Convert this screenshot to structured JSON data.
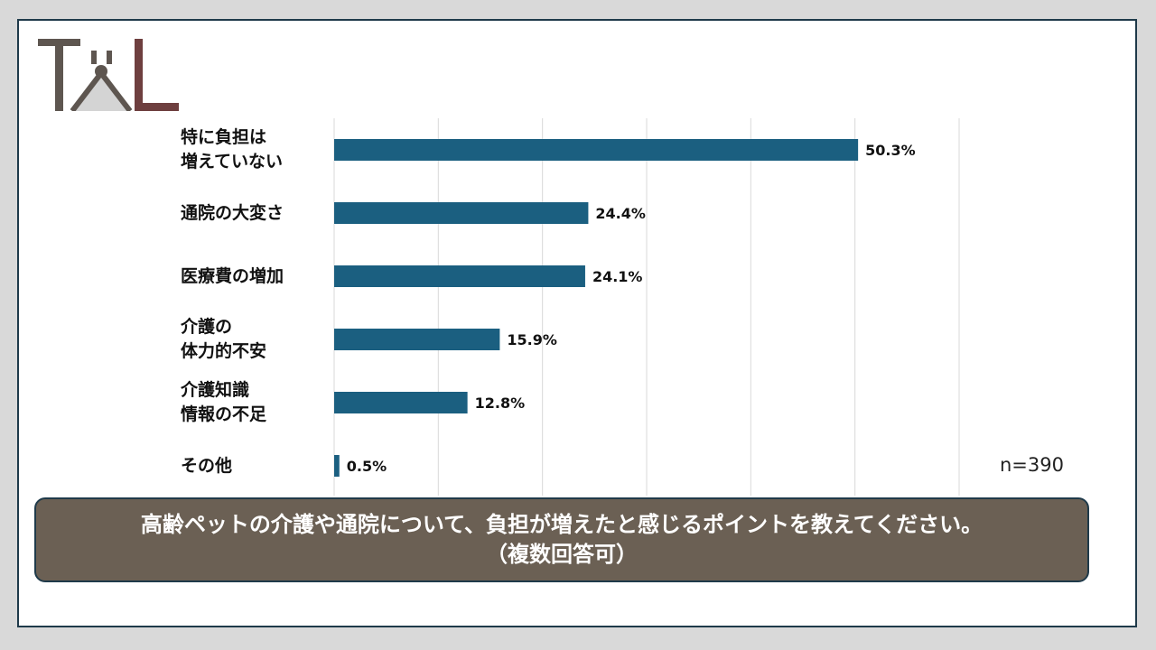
{
  "colors": {
    "bar": "#1b5f80",
    "grid": "#d9d9d9",
    "question_bg": "#6b6054",
    "logo_dark": "#5e5650",
    "logo_red": "#6e3f3f"
  },
  "logo": {
    "text": "TAL"
  },
  "chart_data": {
    "type": "bar",
    "orientation": "horizontal",
    "categories": [
      "特に負担は\n増えていない",
      "通院の大変さ",
      "医療費の増加",
      "介護の\n体力的不安",
      "介護知識\n情報の不足",
      "その他"
    ],
    "values": [
      50.3,
      24.4,
      24.1,
      15.9,
      12.8,
      0.5
    ],
    "value_labels": [
      "50.3%",
      "24.4%",
      "24.1%",
      "15.9%",
      "12.8%",
      "0.5%"
    ],
    "xlim": [
      0,
      60
    ],
    "grid": true,
    "legend": "none"
  },
  "sample_size": "n=390",
  "question": {
    "line1": "高齢ペットの介護や通院について、負担が増えたと感じるポイントを教えてください。",
    "line2": "（複数回答可）"
  }
}
